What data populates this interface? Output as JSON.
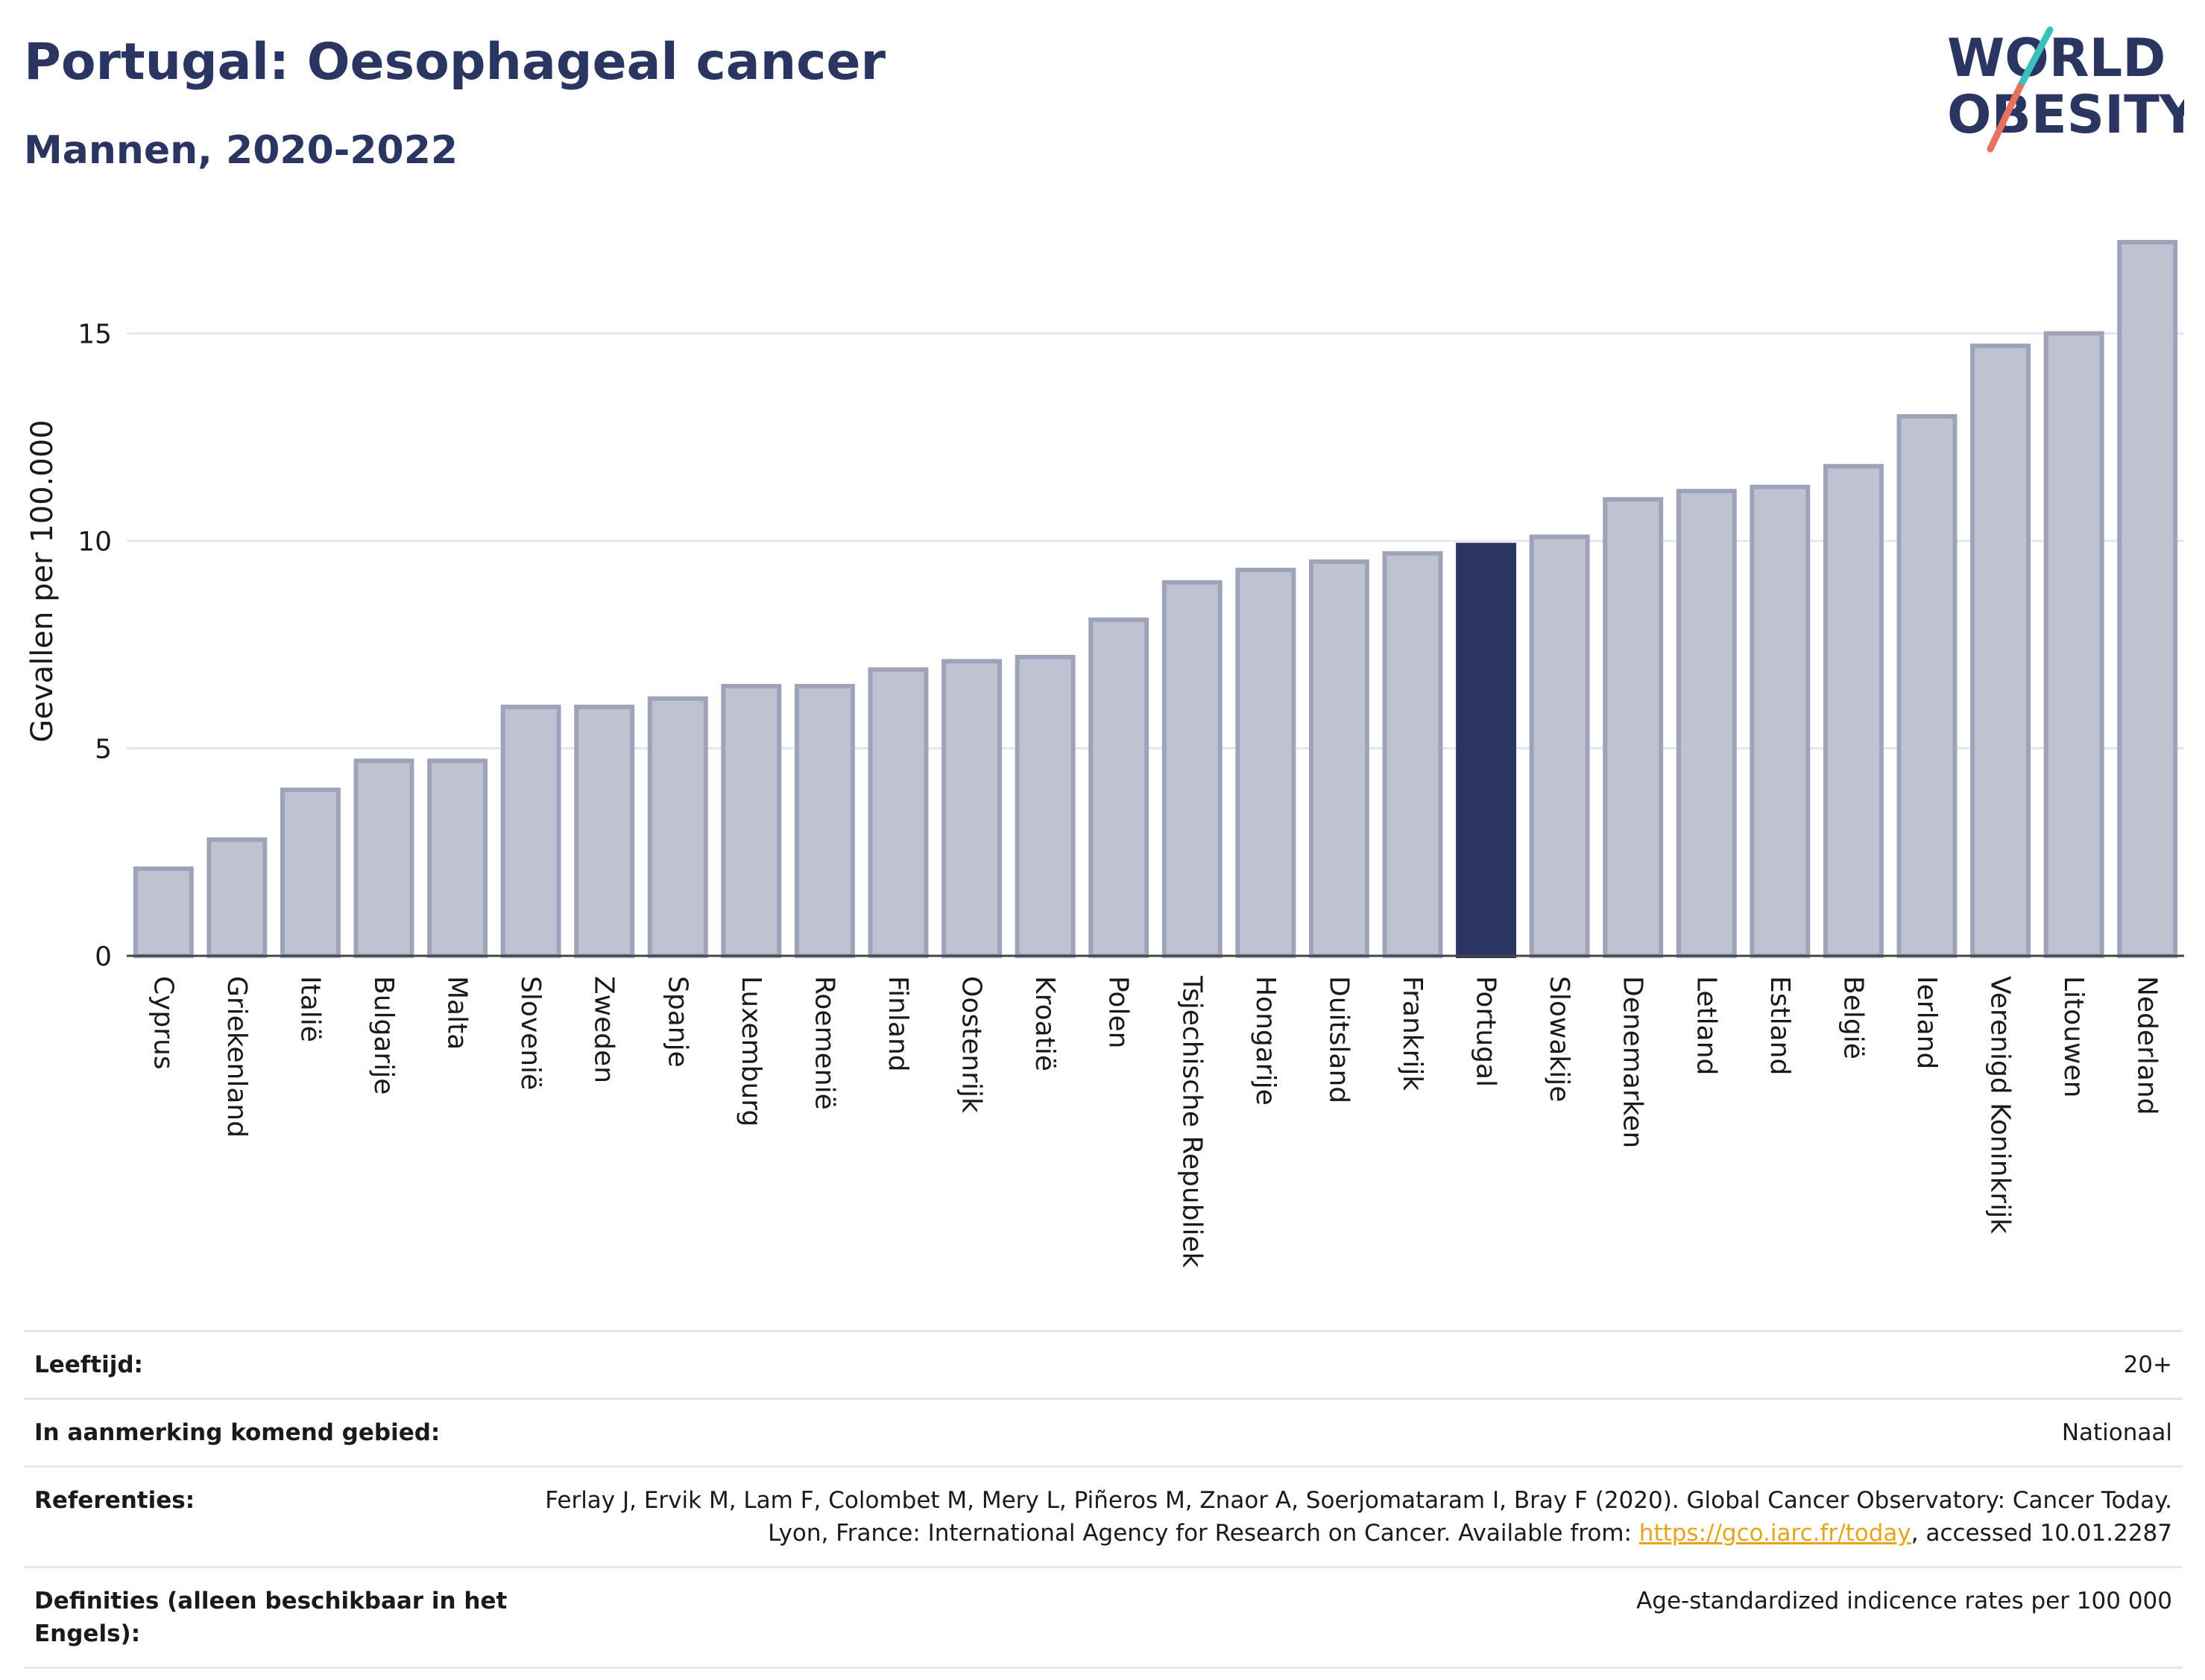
{
  "header": {
    "title": "Portugal: Oesophageal cancer",
    "subtitle": "Mannen, 2020-2022"
  },
  "logo": {
    "line1": "WORLD",
    "line2": "OBESITY",
    "colors": {
      "text": "#2b3561",
      "slash_teal": "#3bbfbf",
      "slash_red": "#e8705c"
    }
  },
  "chart_data": {
    "type": "bar",
    "ylabel": "Gevallen per 100.000",
    "xlabel": "",
    "ylim": [
      0,
      17.2
    ],
    "yticks": [
      0,
      5,
      10,
      15
    ],
    "grid": true,
    "highlight_category": "Portugal",
    "colors": {
      "bar": "#bfc3d1",
      "bar_border": "#9ea3ba",
      "highlight": "#2b3561",
      "grid": "#e3e7ef",
      "axis": "#444444"
    },
    "categories": [
      "Cyprus",
      "Griekenland",
      "Italië",
      "Bulgarije",
      "Malta",
      "Slovenië",
      "Zweden",
      "Spanje",
      "Luxemburg",
      "Roemenië",
      "Finland",
      "Oostenrijk",
      "Kroatië",
      "Polen",
      "Tsjechische Republiek",
      "Hongarije",
      "Duitsland",
      "Frankrijk",
      "Portugal",
      "Slowakije",
      "Denemarken",
      "Letland",
      "Estland",
      "België",
      "Ierland",
      "Verenigd Koninkrijk",
      "Litouwen",
      "Nederland"
    ],
    "values": [
      2.1,
      2.8,
      4.0,
      4.7,
      4.7,
      6.0,
      6.0,
      6.2,
      6.5,
      6.5,
      6.9,
      7.1,
      7.2,
      8.1,
      9.0,
      9.3,
      9.5,
      9.7,
      9.9,
      10.1,
      11.0,
      11.2,
      11.3,
      11.8,
      13.0,
      14.7,
      15.0,
      17.2
    ]
  },
  "meta": {
    "age_label": "Leeftijd:",
    "age_value": "20+",
    "area_label": "In aanmerking komend gebied:",
    "area_value": "Nationaal",
    "ref_label": "Referenties:",
    "ref_text_1": "Ferlay J, Ervik M, Lam F, Colombet M, Mery L, Piñeros M, Znaor A, Soerjomataram I, Bray F (2020). Global Cancer Observatory: Cancer Today. Lyon, France: International Agency for Research on Cancer. Available from: ",
    "ref_link": "https://gco.iarc.fr/today",
    "ref_text_2": ", accessed 10.01.2287",
    "def_label": "Definities (alleen beschikbaar in het Engels):",
    "def_value": "Age-standardized indicence rates per 100 000"
  }
}
